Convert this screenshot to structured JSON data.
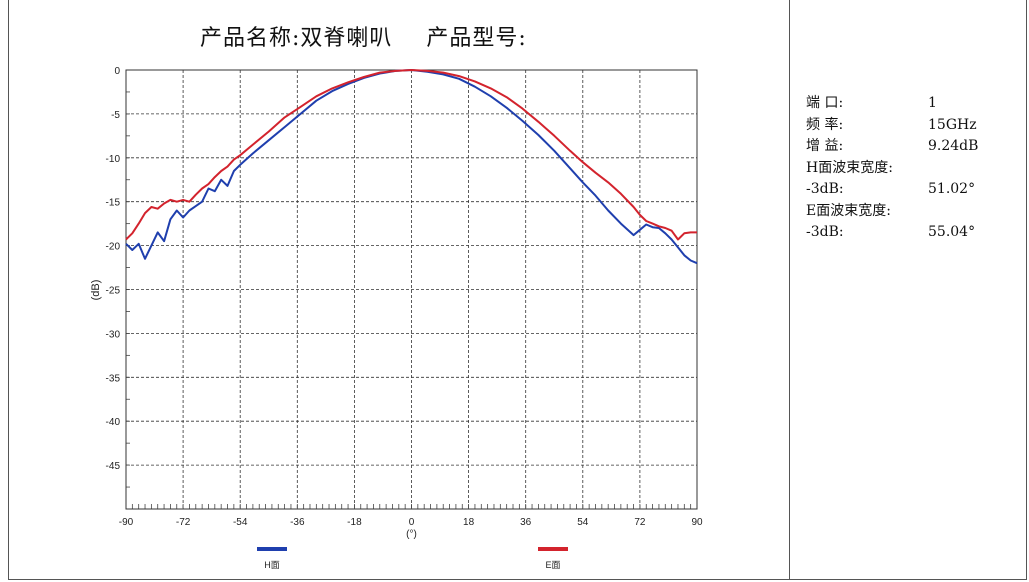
{
  "header": {
    "product_name_label": "产品名称:双脊喇叭",
    "product_model_label": "产品型号:"
  },
  "info": {
    "port_label": "端 口:",
    "port_value": "1",
    "freq_label": "频 率:",
    "freq_value": "15GHz",
    "gain_label": "增 益:",
    "gain_value": "9.24dB",
    "h_beam_label": "H面波束宽度:",
    "h_3db_label": "-3dB:",
    "h_3db_value": "51.02°",
    "e_beam_label": "E面波束宽度:",
    "e_3db_label": "-3dB:",
    "e_3db_value": "55.04°"
  },
  "colors": {
    "h_series": "#1f3fae",
    "e_series": "#d3232d",
    "grid": "#333333"
  },
  "chart_data": {
    "type": "line",
    "xlabel": "(°)",
    "ylabel": "(dB)",
    "xlim": [
      -90,
      90
    ],
    "ylim": [
      -50,
      0
    ],
    "xticks": [
      -90,
      -72,
      -54,
      -36,
      -18,
      0,
      18,
      36,
      54,
      72,
      90
    ],
    "yticks": [
      0,
      -5,
      -10,
      -15,
      -20,
      -25,
      -30,
      -35,
      -40,
      -45
    ],
    "grid": true,
    "legend_position": "bottom",
    "series": [
      {
        "name": "H面",
        "x": [
          -90,
          -88,
          -86,
          -84,
          -82,
          -80,
          -78,
          -76,
          -74,
          -72,
          -70,
          -68,
          -66,
          -64,
          -62,
          -60,
          -58,
          -56,
          -54,
          -50,
          -45,
          -40,
          -35,
          -30,
          -25,
          -20,
          -15,
          -10,
          -5,
          0,
          5,
          10,
          15,
          20,
          25,
          30,
          35,
          40,
          45,
          50,
          54,
          58,
          62,
          66,
          70,
          72,
          74,
          76,
          78,
          80,
          82,
          84,
          86,
          88,
          90
        ],
        "y": [
          -19.8,
          -20.5,
          -19.8,
          -21.5,
          -20,
          -18.5,
          -19.5,
          -17,
          -16,
          -16.8,
          -16,
          -15.5,
          -15,
          -13.5,
          -13.8,
          -12.5,
          -13.2,
          -11.5,
          -10.8,
          -9.5,
          -8,
          -6.5,
          -5,
          -3.5,
          -2.4,
          -1.6,
          -0.9,
          -0.4,
          -0.1,
          0,
          -0.2,
          -0.5,
          -1,
          -1.9,
          -3,
          -4.3,
          -5.8,
          -7.4,
          -9.2,
          -11.2,
          -12.8,
          -14.3,
          -16,
          -17.5,
          -18.8,
          -18.2,
          -17.6,
          -17.9,
          -18,
          -18.6,
          -19.3,
          -20.2,
          -21.1,
          -21.7,
          -22
        ]
      },
      {
        "name": "E面",
        "x": [
          -90,
          -88,
          -86,
          -84,
          -82,
          -80,
          -78,
          -76,
          -74,
          -72,
          -70,
          -68,
          -66,
          -64,
          -62,
          -60,
          -58,
          -56,
          -54,
          -50,
          -45,
          -40,
          -35,
          -30,
          -25,
          -20,
          -15,
          -10,
          -5,
          0,
          5,
          10,
          15,
          20,
          25,
          30,
          35,
          40,
          45,
          50,
          54,
          58,
          62,
          66,
          70,
          72,
          74,
          76,
          78,
          80,
          82,
          84,
          86,
          88,
          90
        ],
        "y": [
          -19.3,
          -18.6,
          -17.5,
          -16.3,
          -15.6,
          -15.8,
          -15.2,
          -14.8,
          -15,
          -14.8,
          -15,
          -14.2,
          -13.5,
          -13,
          -12.2,
          -11.5,
          -11,
          -10.2,
          -9.7,
          -8.5,
          -7,
          -5.4,
          -4.2,
          -3,
          -2.1,
          -1.4,
          -0.8,
          -0.3,
          -0.1,
          0,
          -0.1,
          -0.3,
          -0.7,
          -1.3,
          -2.1,
          -3.1,
          -4.4,
          -5.9,
          -7.5,
          -9.2,
          -10.5,
          -11.7,
          -12.8,
          -14.1,
          -15.6,
          -16.5,
          -17.2,
          -17.5,
          -17.8,
          -18,
          -18.3,
          -19.3,
          -18.6,
          -18.5,
          -18.5
        ]
      }
    ]
  }
}
